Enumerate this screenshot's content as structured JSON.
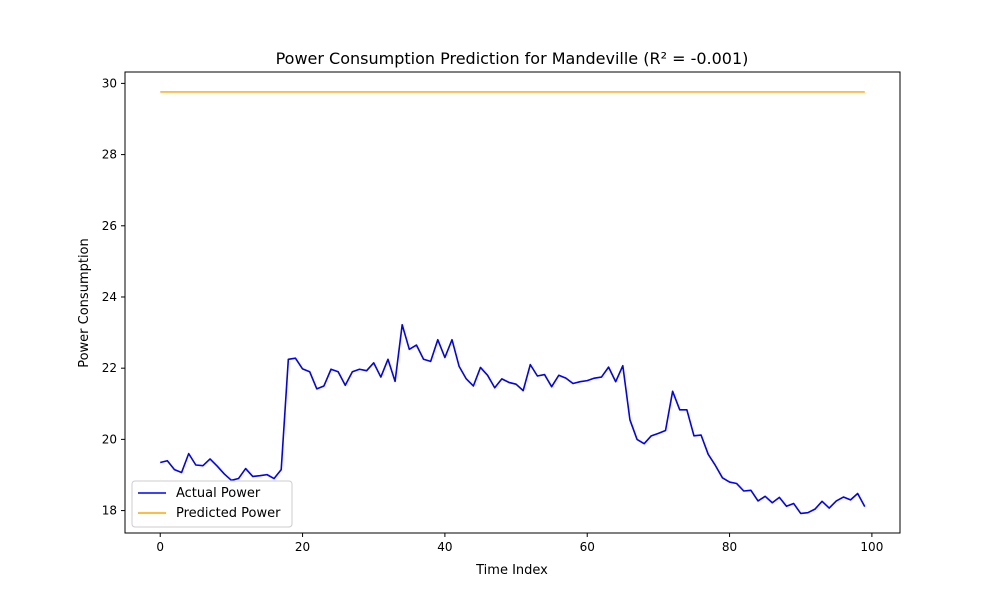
{
  "chart_data": {
    "type": "line",
    "title": "Power Consumption Prediction for Mandeville (R² = -0.001)",
    "xlabel": "Time Index",
    "ylabel": "Power Consumption",
    "xlim": [
      -4.95,
      103.95
    ],
    "ylim": [
      17.37,
      30.32
    ],
    "xticks": [
      0,
      20,
      40,
      60,
      80,
      100
    ],
    "yticks": [
      18,
      20,
      22,
      24,
      26,
      28,
      30
    ],
    "grid": false,
    "legend": "lower-left",
    "series": [
      {
        "name": "Actual Power",
        "color": "#0000ff",
        "x": [
          0,
          1,
          2,
          3,
          4,
          5,
          6,
          7,
          8,
          9,
          10,
          11,
          12,
          13,
          14,
          15,
          16,
          17,
          18,
          19,
          20,
          21,
          22,
          23,
          24,
          25,
          26,
          27,
          28,
          29,
          30,
          31,
          32,
          33,
          34,
          35,
          36,
          37,
          38,
          39,
          40,
          41,
          42,
          43,
          44,
          45,
          46,
          47,
          48,
          49,
          50,
          51,
          52,
          53,
          54,
          55,
          56,
          57,
          58,
          59,
          60,
          61,
          62,
          63,
          64,
          65,
          66,
          67,
          68,
          69,
          70,
          71,
          72,
          73,
          74,
          75,
          76,
          77,
          78,
          79,
          80,
          81,
          82,
          83,
          84,
          85,
          86,
          87,
          88,
          89,
          90,
          91,
          92,
          93,
          94,
          95,
          96,
          97,
          98,
          99
        ],
        "values": [
          19.35,
          19.4,
          19.15,
          19.07,
          19.6,
          19.28,
          19.26,
          19.45,
          19.25,
          19.03,
          18.85,
          18.9,
          19.18,
          18.96,
          18.98,
          19.01,
          18.9,
          19.15,
          22.25,
          22.28,
          21.98,
          21.9,
          21.42,
          21.5,
          21.97,
          21.9,
          21.52,
          21.9,
          21.97,
          21.93,
          22.15,
          21.75,
          22.25,
          21.63,
          23.22,
          22.53,
          22.65,
          22.25,
          22.19,
          22.8,
          22.3,
          22.8,
          22.05,
          21.7,
          21.5,
          22.02,
          21.8,
          21.45,
          21.7,
          21.6,
          21.55,
          21.37,
          22.1,
          21.78,
          21.82,
          21.48,
          21.8,
          21.72,
          21.57,
          21.62,
          21.65,
          21.72,
          21.75,
          22.03,
          21.62,
          22.07,
          20.55,
          20.0,
          19.88,
          20.1,
          20.17,
          20.25,
          21.35,
          20.83,
          20.83,
          20.1,
          20.12,
          19.58,
          19.27,
          18.92,
          18.8,
          18.76,
          18.55,
          18.57,
          18.27,
          18.4,
          18.22,
          18.37,
          18.12,
          18.2,
          17.92,
          17.94,
          18.04,
          18.26,
          18.07,
          18.27,
          18.38,
          18.3,
          18.48,
          18.11
        ]
      },
      {
        "name": "Predicted Power",
        "color": "#ffa500",
        "x": [
          0,
          99
        ],
        "values": [
          29.76,
          29.76
        ]
      }
    ]
  }
}
